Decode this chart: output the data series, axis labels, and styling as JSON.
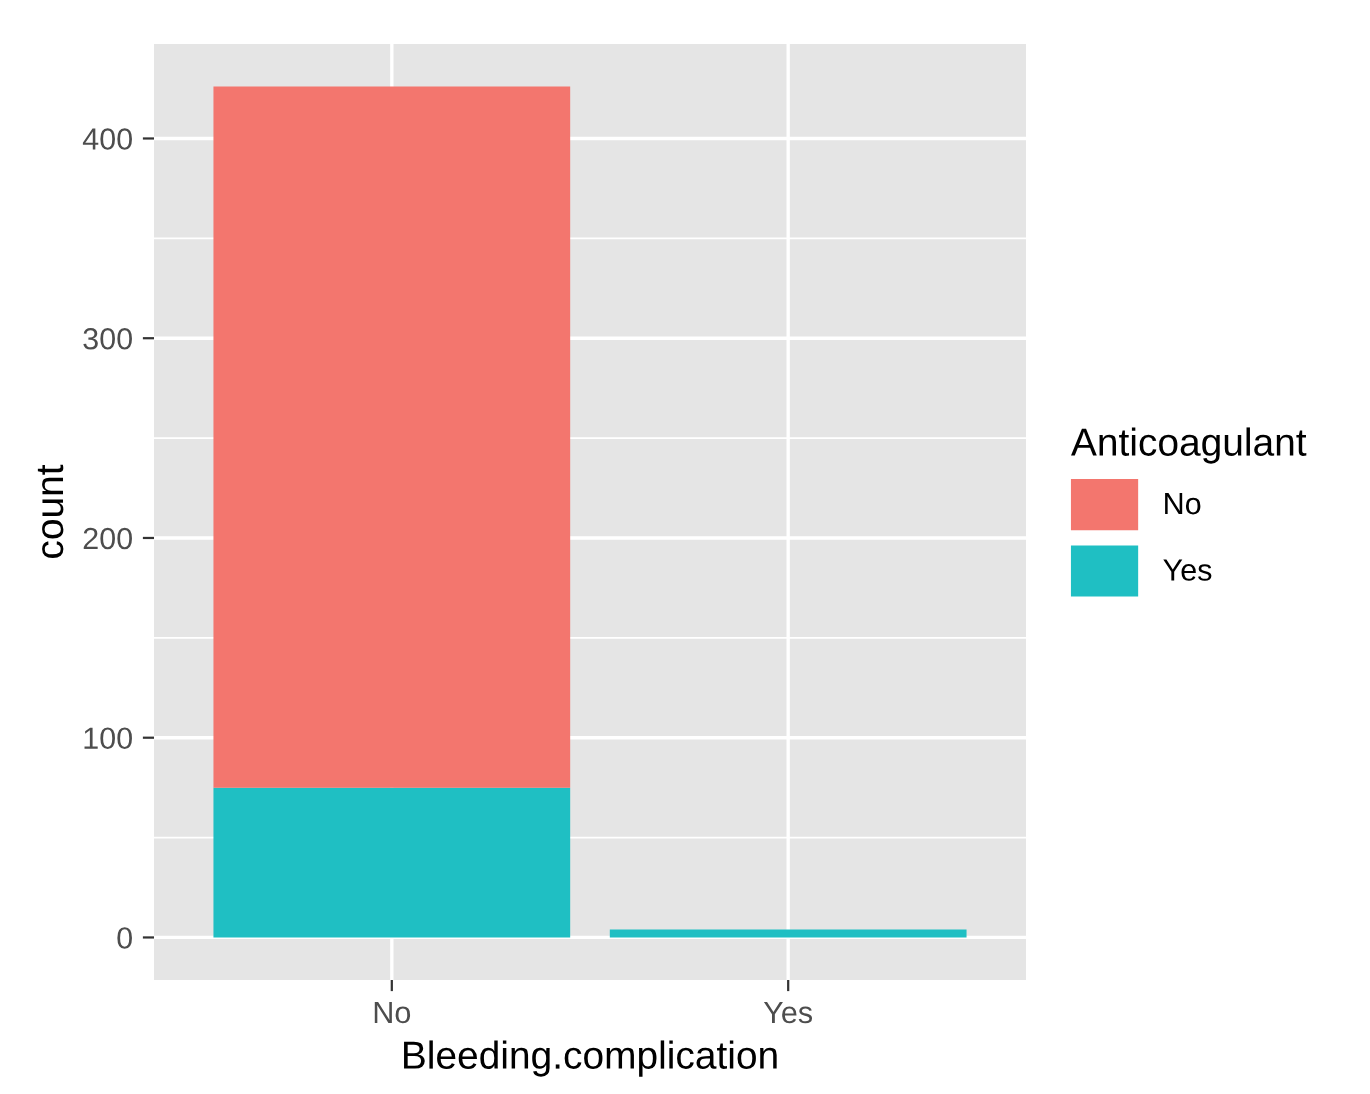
{
  "chart_data": {
    "type": "bar",
    "stacked": true,
    "xlabel": "Bleeding.complication",
    "ylabel": "count",
    "legend_title": "Anticoagulant",
    "categories": [
      "No",
      "Yes"
    ],
    "series": [
      {
        "name": "Yes",
        "color": "#1fbfc3",
        "values": [
          75,
          4
        ]
      },
      {
        "name": "No",
        "color": "#f3766e",
        "values": [
          351,
          0
        ]
      }
    ],
    "ylim": [
      -21.3,
      447.3
    ],
    "yticks": [
      0,
      100,
      200,
      300,
      400
    ],
    "grid": true,
    "legend": "right"
  }
}
